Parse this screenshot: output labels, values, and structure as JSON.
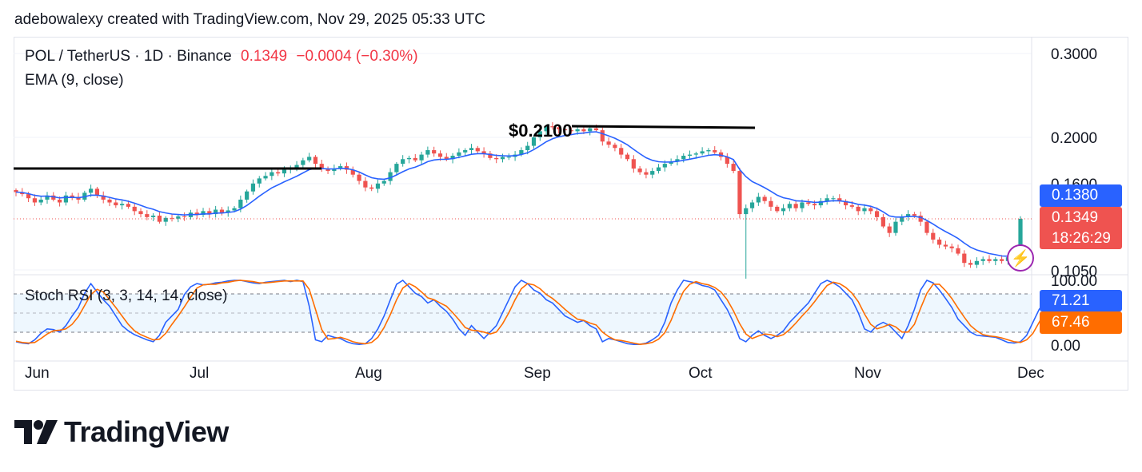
{
  "header": {
    "text": "adebowalexy created with TradingView.com, Nov 29, 2025 05:33 UTC"
  },
  "legend": {
    "symbol": "POL / TetherUS · 1D · Binance",
    "price": "0.1349",
    "change": "−0.0004 (−0.30%)",
    "ema": "EMA (9, close)",
    "stoch": "Stoch RSI (3, 3, 14, 14, close)"
  },
  "tags": {
    "ema_value": "0.1380",
    "last_price": "0.1349",
    "countdown": "18:26:29",
    "stoch_k": "71.21",
    "stoch_d": "67.46"
  },
  "annotation": {
    "label": "$0.2100"
  },
  "logo": {
    "text": "TradingView"
  },
  "colors": {
    "up": "#26a69a",
    "down": "#ef5350",
    "ema": "#2962ff",
    "k": "#2962ff",
    "d": "#ff6d00",
    "bolt": "#9c27b0"
  },
  "chart_data": {
    "type": "candlestick",
    "price_axis": {
      "scale": "log",
      "ticks": [
        "0.3000",
        "0.2000",
        "0.1600",
        "0.1050"
      ]
    },
    "rsi_axis": {
      "ticks": [
        "100.00",
        "0.00"
      ],
      "range": [
        0,
        100
      ]
    },
    "x_labels": [
      "Jun",
      "Jul",
      "Aug",
      "Sep",
      "Oct",
      "Nov",
      "Dec"
    ],
    "close": [
      0.1535,
      0.152,
      0.149,
      0.146,
      0.148,
      0.151,
      0.148,
      0.146,
      0.151,
      0.15,
      0.148,
      0.153,
      0.156,
      0.151,
      0.148,
      0.146,
      0.144,
      0.145,
      0.143,
      0.14,
      0.138,
      0.136,
      0.137,
      0.133,
      0.1355,
      0.135,
      0.1365,
      0.136,
      0.139,
      0.1375,
      0.14,
      0.138,
      0.141,
      0.139,
      0.1405,
      0.142,
      0.148,
      0.154,
      0.16,
      0.164,
      0.166,
      0.169,
      0.168,
      0.171,
      0.172,
      0.175,
      0.179,
      0.182,
      0.176,
      0.172,
      0.17,
      0.172,
      0.174,
      0.171,
      0.167,
      0.162,
      0.157,
      0.156,
      0.16,
      0.162,
      0.169,
      0.176,
      0.18,
      0.181,
      0.179,
      0.184,
      0.188,
      0.185,
      0.182,
      0.18,
      0.183,
      0.186,
      0.188,
      0.19,
      0.187,
      0.185,
      0.181,
      0.18,
      0.182,
      0.182,
      0.184,
      0.188,
      0.192,
      0.2,
      0.206,
      0.211,
      0.21,
      0.208,
      0.207,
      0.206,
      0.208,
      0.206,
      0.209,
      0.207,
      0.196,
      0.193,
      0.19,
      0.184,
      0.18,
      0.172,
      0.169,
      0.167,
      0.17,
      0.173,
      0.176,
      0.178,
      0.18,
      0.183,
      0.184,
      0.185,
      0.187,
      0.188,
      0.186,
      0.182,
      0.176,
      0.17,
      0.138,
      0.142,
      0.146,
      0.15,
      0.147,
      0.143,
      0.14,
      0.142,
      0.145,
      0.142,
      0.146,
      0.145,
      0.144,
      0.147,
      0.149,
      0.149,
      0.147,
      0.144,
      0.143,
      0.14,
      0.142,
      0.14,
      0.136,
      0.13,
      0.126,
      0.133,
      0.136,
      0.138,
      0.137,
      0.133,
      0.126,
      0.122,
      0.119,
      0.118,
      0.117,
      0.114,
      0.109,
      0.108,
      0.11,
      0.111,
      0.11,
      0.111,
      0.11,
      0.112,
      0.111,
      0.1349
    ],
    "stoch_k": [
      5,
      3,
      2,
      8,
      18,
      25,
      24,
      20,
      30,
      45,
      58,
      80,
      95,
      82,
      70,
      60,
      45,
      30,
      22,
      16,
      12,
      8,
      5,
      15,
      35,
      45,
      55,
      78,
      90,
      95,
      93,
      94,
      96,
      97,
      99,
      100,
      100,
      98,
      96,
      95,
      97,
      98,
      99,
      100,
      98,
      100,
      98,
      60,
      8,
      5,
      15,
      12,
      10,
      5,
      2,
      1,
      2,
      10,
      25,
      45,
      70,
      94,
      100,
      90,
      80,
      75,
      65,
      70,
      60,
      52,
      40,
      25,
      15,
      30,
      20,
      10,
      20,
      30,
      50,
      70,
      90,
      100,
      95,
      85,
      80,
      70,
      65,
      55,
      45,
      40,
      35,
      38,
      30,
      25,
      5,
      10,
      8,
      5,
      2,
      1,
      1,
      3,
      8,
      15,
      35,
      65,
      85,
      100,
      98,
      96,
      92,
      90,
      85,
      70,
      55,
      35,
      10,
      5,
      15,
      22,
      15,
      10,
      15,
      22,
      35,
      45,
      55,
      65,
      80,
      95,
      100,
      96,
      90,
      80,
      70,
      50,
      25,
      20,
      30,
      35,
      30,
      20,
      10,
      30,
      55,
      85,
      100,
      96,
      85,
      72,
      58,
      40,
      30,
      20,
      15,
      14,
      13,
      12,
      8,
      4,
      3,
      5,
      15,
      35,
      55,
      68,
      71.21
    ],
    "stoch_d": [
      6,
      4,
      3,
      4,
      10,
      17,
      22,
      23,
      25,
      32,
      44,
      61,
      78,
      86,
      82,
      70,
      58,
      45,
      32,
      22,
      16,
      12,
      8,
      9,
      18,
      32,
      45,
      59,
      74,
      88,
      93,
      94,
      94,
      96,
      97,
      99,
      100,
      99,
      98,
      96,
      96,
      97,
      98,
      99,
      99,
      99,
      99,
      86,
      55,
      24,
      9,
      10,
      12,
      9,
      5,
      3,
      2,
      4,
      12,
      27,
      47,
      70,
      88,
      95,
      90,
      82,
      73,
      70,
      65,
      60,
      50,
      39,
      27,
      23,
      22,
      20,
      17,
      20,
      33,
      50,
      70,
      87,
      95,
      93,
      87,
      78,
      72,
      64,
      55,
      47,
      40,
      38,
      34,
      31,
      20,
      13,
      8,
      7,
      5,
      3,
      1,
      2,
      4,
      9,
      19,
      38,
      62,
      83,
      94,
      98,
      95,
      93,
      89,
      82,
      70,
      53,
      33,
      17,
      10,
      14,
      17,
      16,
      13,
      16,
      24,
      34,
      45,
      55,
      67,
      80,
      92,
      97,
      95,
      89,
      80,
      67,
      48,
      32,
      25,
      28,
      32,
      28,
      20,
      20,
      32,
      57,
      80,
      94,
      94,
      84,
      72,
      57,
      43,
      30,
      22,
      16,
      14,
      13,
      11,
      8,
      5,
      4,
      8,
      18,
      35,
      53,
      67.46
    ]
  }
}
